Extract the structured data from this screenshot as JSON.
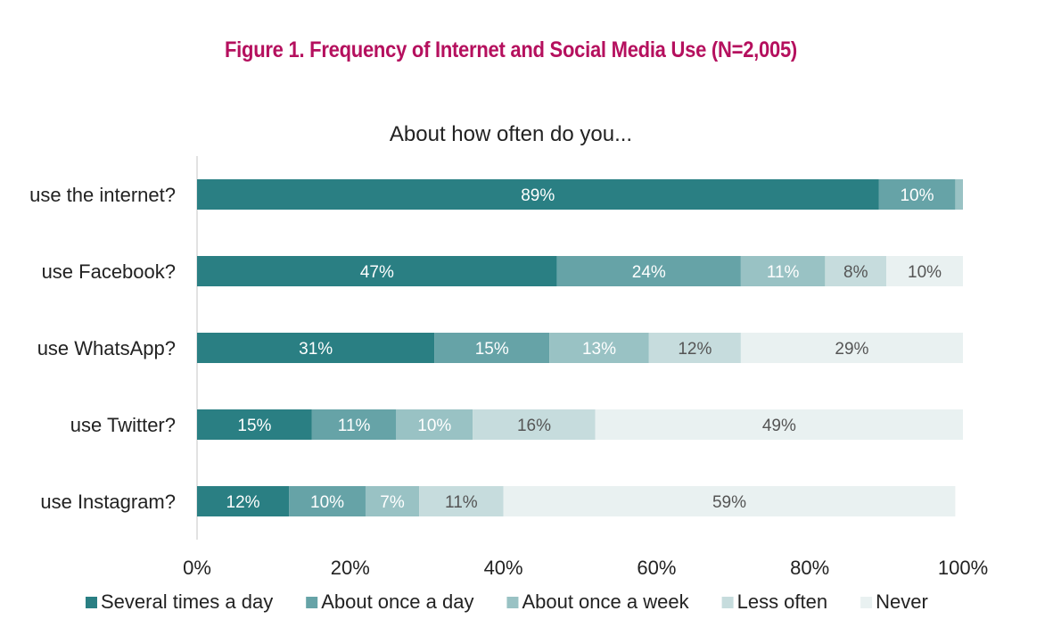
{
  "figure": {
    "title": "Figure 1. Frequency of Internet and Social Media Use (N=2,005)",
    "title_color": "#b5105e"
  },
  "chart_data": {
    "type": "bar",
    "orientation": "horizontal",
    "stacked": true,
    "title": "About how often do you...",
    "categories": [
      "use the internet?",
      "use Facebook?",
      "use WhatsApp?",
      "use Twitter?",
      "use Instagram?"
    ],
    "series": [
      {
        "name": "Several times a day",
        "color": "#2a7f83",
        "label_color": "#ffffff",
        "values": [
          89,
          47,
          31,
          15,
          12
        ],
        "labels": [
          "89%",
          "47%",
          "31%",
          "15%",
          "12%"
        ]
      },
      {
        "name": "About once a day",
        "color": "#66a3a7",
        "label_color": "#ffffff",
        "values": [
          10,
          24,
          15,
          11,
          10
        ],
        "labels": [
          "10%",
          "24%",
          "15%",
          "11%",
          "10%"
        ]
      },
      {
        "name": "About once a week",
        "color": "#99c2c4",
        "label_color": "#ffffff",
        "values": [
          1,
          11,
          13,
          10,
          7
        ],
        "labels": [
          "",
          "11%",
          "13%",
          "10%",
          "7%"
        ]
      },
      {
        "name": "Less often",
        "color": "#c6dcdd",
        "label_color": "#555555",
        "values": [
          0.5,
          8,
          12,
          16,
          11
        ],
        "labels": [
          "",
          "8%",
          "12%",
          "16%",
          "11%"
        ]
      },
      {
        "name": "Never",
        "color": "#e9f1f1",
        "label_color": "#555555",
        "values": [
          0,
          10,
          29,
          49,
          59
        ],
        "labels": [
          "",
          "10%",
          "29%",
          "49%",
          "59%"
        ]
      }
    ],
    "xlim": [
      0,
      100
    ],
    "xticks": [
      "0%",
      "20%",
      "40%",
      "60%",
      "80%",
      "100%"
    ],
    "grid": false,
    "legend": "bottom"
  }
}
